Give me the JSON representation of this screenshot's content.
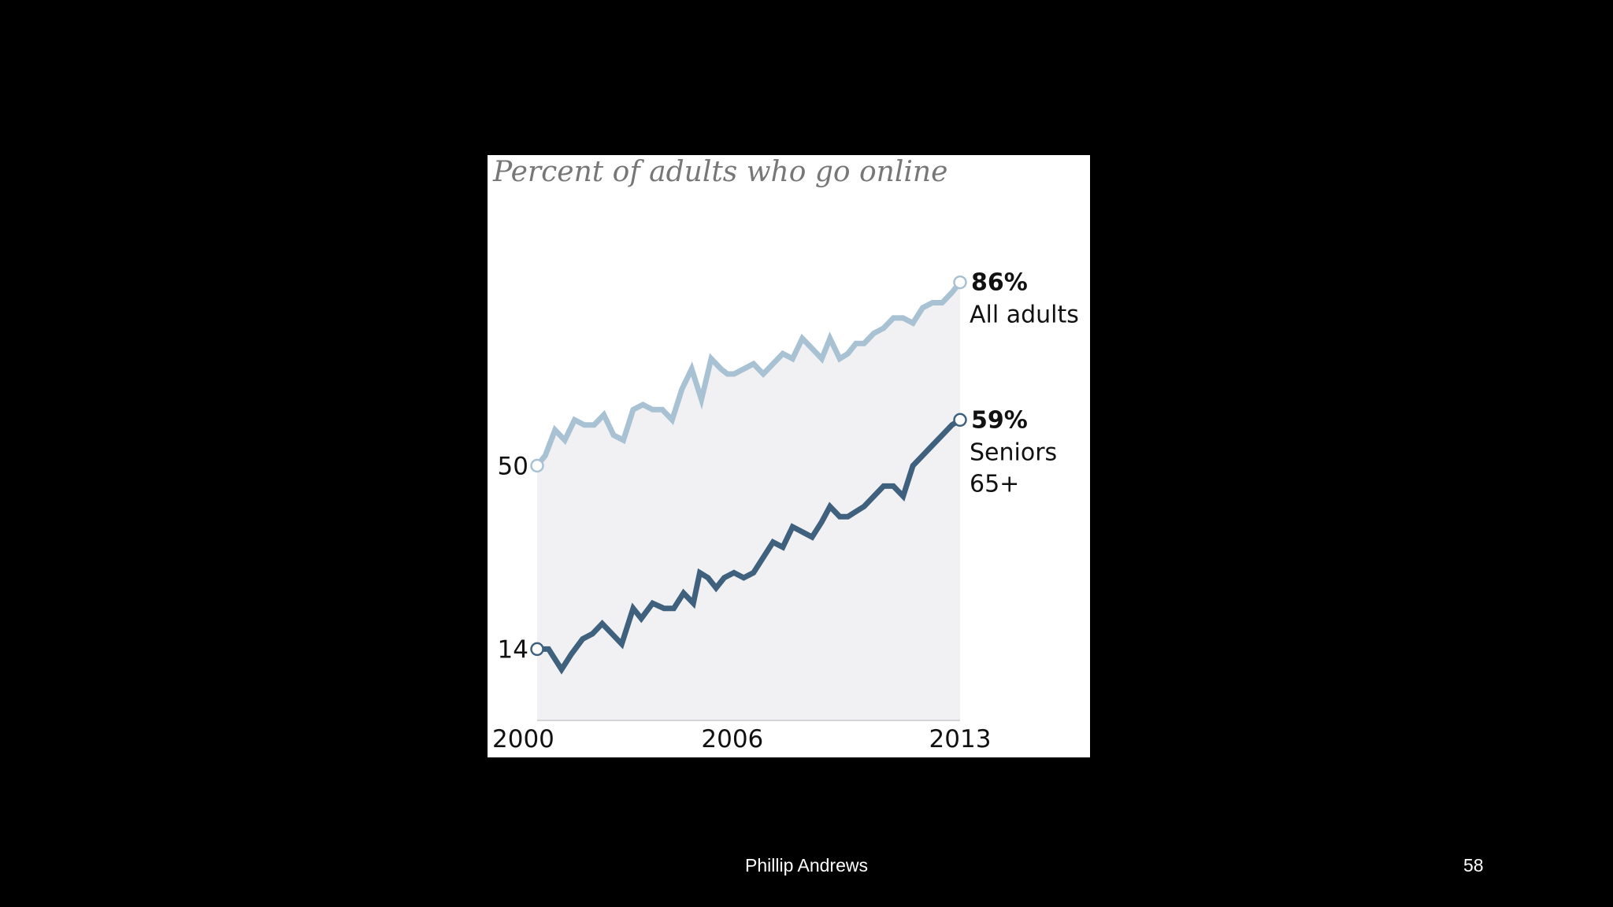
{
  "slide": {
    "author": "Phillip Andrews",
    "page_number": "58"
  },
  "chart_data": {
    "type": "line",
    "title": "Percent of adults who go online",
    "xlabel": "",
    "ylabel": "",
    "x_ticks": [
      "2000",
      "2006",
      "2013"
    ],
    "y_ticks": [
      "50",
      "14"
    ],
    "xlim": [
      2000,
      2013
    ],
    "ylim": [
      0,
      100
    ],
    "grid": false,
    "legend": "none",
    "series": [
      {
        "name": "All adults",
        "end_label": "86%",
        "label_lines": [
          "All adults"
        ],
        "color": "#a9c2d3",
        "x": [
          2000.0,
          2000.25,
          2000.55,
          2000.85,
          2001.15,
          2001.45,
          2001.75,
          2002.05,
          2002.35,
          2002.65,
          2002.95,
          2003.25,
          2003.55,
          2003.85,
          2004.15,
          2004.45,
          2004.75,
          2005.05,
          2005.35,
          2005.65,
          2005.85,
          2006.05,
          2006.35,
          2006.65,
          2006.95,
          2007.25,
          2007.55,
          2007.85,
          2008.15,
          2008.45,
          2008.75,
          2009.0,
          2009.3,
          2009.55,
          2009.8,
          2010.05,
          2010.35,
          2010.65,
          2010.95,
          2011.25,
          2011.55,
          2011.85,
          2012.15,
          2012.45,
          2012.75,
          2013.0
        ],
        "values": [
          50,
          52,
          57,
          55,
          59,
          58,
          58,
          60,
          56,
          55,
          61,
          62,
          61,
          61,
          59,
          65,
          69,
          63,
          71,
          69,
          68,
          68,
          69,
          70,
          68,
          70,
          72,
          71,
          75,
          73,
          71,
          75,
          71,
          72,
          74,
          74,
          76,
          77,
          79,
          79,
          78,
          81,
          82,
          82,
          84,
          86
        ]
      },
      {
        "name": "Seniors 65+",
        "end_label": "59%",
        "label_lines": [
          "Seniors",
          "65+"
        ],
        "color": "#3f617e",
        "x": [
          2000.0,
          2000.35,
          2000.75,
          2001.05,
          2001.4,
          2001.7,
          2002.0,
          2002.3,
          2002.6,
          2002.95,
          2003.2,
          2003.55,
          2003.9,
          2004.2,
          2004.5,
          2004.8,
          2005.0,
          2005.25,
          2005.5,
          2005.75,
          2006.05,
          2006.35,
          2006.65,
          2006.95,
          2007.25,
          2007.55,
          2007.85,
          2008.15,
          2008.45,
          2008.75,
          2009.0,
          2009.3,
          2009.55,
          2009.8,
          2010.05,
          2010.35,
          2010.65,
          2010.95,
          2011.25,
          2011.55,
          2011.85,
          2012.15,
          2012.45,
          2012.75,
          2013.0
        ],
        "values": [
          14,
          14,
          10,
          13,
          16,
          17,
          19,
          17,
          15,
          22,
          20,
          23,
          22,
          22,
          25,
          23,
          29,
          28,
          26,
          28,
          29,
          28,
          29,
          32,
          35,
          34,
          38,
          37,
          36,
          39,
          42,
          40,
          40,
          41,
          42,
          44,
          46,
          46,
          44,
          50,
          52,
          54,
          56,
          58,
          59
        ]
      }
    ],
    "shaded_region": {
      "x_start": 2000,
      "x_end": 2013,
      "color": "#f1f1f4"
    },
    "baseline_color": "#d5d5d8"
  }
}
